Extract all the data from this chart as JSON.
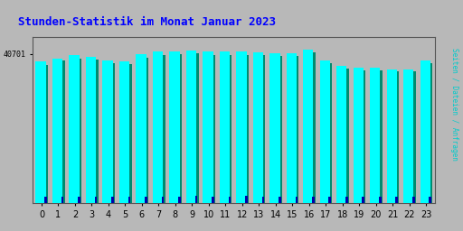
{
  "title": "Stunden-Statistik im Monat Januar 2023",
  "title_color": "#0000FF",
  "title_fontsize": 9,
  "xlabel_values": [
    0,
    1,
    2,
    3,
    4,
    5,
    6,
    7,
    8,
    9,
    10,
    11,
    12,
    13,
    14,
    15,
    16,
    17,
    18,
    19,
    20,
    21,
    22,
    23
  ],
  "ylabel_right": "Seiten / Dateien / Anfragen",
  "ylabel_right_color": "#00CCCC",
  "ytick_label": "40701",
  "background_color": "#B8B8B8",
  "plot_bg_color": "#B8B8B8",
  "cyan_color": "#00FFFF",
  "teal_color": "#008B6E",
  "blue_color": "#0000AA",
  "cyan_values": [
    92,
    94,
    96,
    95,
    93,
    92,
    97,
    98.5,
    98.5,
    99,
    98.5,
    98.5,
    98.5,
    98,
    97.5,
    97.5,
    100,
    93,
    89,
    88,
    88,
    87,
    87,
    93
  ],
  "teal_values": [
    90,
    92.5,
    94,
    93.5,
    91,
    90.5,
    94.5,
    96.5,
    97,
    97.5,
    96.5,
    96.5,
    96.5,
    96,
    95.5,
    95.5,
    98,
    91,
    87.5,
    86.5,
    86.5,
    85.5,
    85.5,
    91
  ],
  "blue_values": [
    4,
    4,
    4,
    4,
    4,
    4,
    4,
    4,
    4,
    5,
    4,
    4,
    5,
    4,
    4,
    4,
    4,
    4,
    4,
    4,
    4,
    4,
    4,
    4
  ],
  "ymin": 0,
  "ymax": 108
}
